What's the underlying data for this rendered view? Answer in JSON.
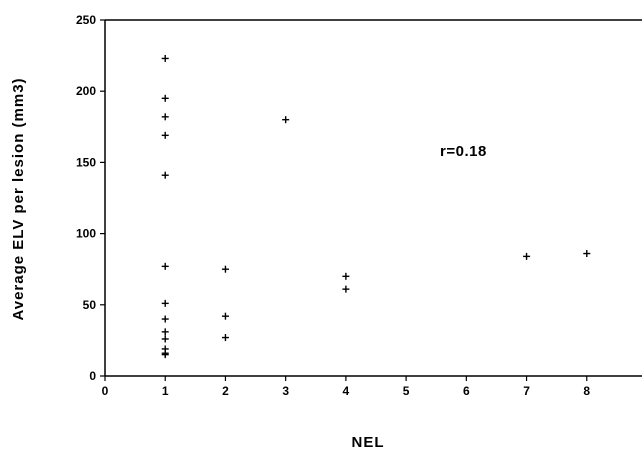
{
  "chart_data": {
    "type": "scatter",
    "xlabel": "NEL",
    "ylabel": "Average ELV per lesion (mm3)",
    "xlim": [
      0,
      9
    ],
    "ylim": [
      0,
      250
    ],
    "xticks": [
      "0",
      "1",
      "2",
      "3",
      "4",
      "5",
      "6",
      "7",
      "8"
    ],
    "yticks": [
      "0",
      "50",
      "100",
      "150",
      "200",
      "250"
    ],
    "annotation": "r=0.18",
    "grid": false,
    "marker": "plus",
    "series": [
      {
        "points": [
          {
            "x": 1,
            "y": 223
          },
          {
            "x": 1,
            "y": 195
          },
          {
            "x": 1,
            "y": 182
          },
          {
            "x": 1,
            "y": 169
          },
          {
            "x": 1,
            "y": 141
          },
          {
            "x": 1,
            "y": 77
          },
          {
            "x": 1,
            "y": 51
          },
          {
            "x": 1,
            "y": 40
          },
          {
            "x": 1,
            "y": 31
          },
          {
            "x": 1,
            "y": 26
          },
          {
            "x": 1,
            "y": 19
          },
          {
            "x": 1,
            "y": 16
          },
          {
            "x": 1,
            "y": 15
          },
          {
            "x": 2,
            "y": 75
          },
          {
            "x": 2,
            "y": 42
          },
          {
            "x": 2,
            "y": 27
          },
          {
            "x": 3,
            "y": 180
          },
          {
            "x": 4,
            "y": 70
          },
          {
            "x": 4,
            "y": 61
          },
          {
            "x": 7,
            "y": 84
          },
          {
            "x": 8,
            "y": 86
          }
        ]
      }
    ]
  }
}
